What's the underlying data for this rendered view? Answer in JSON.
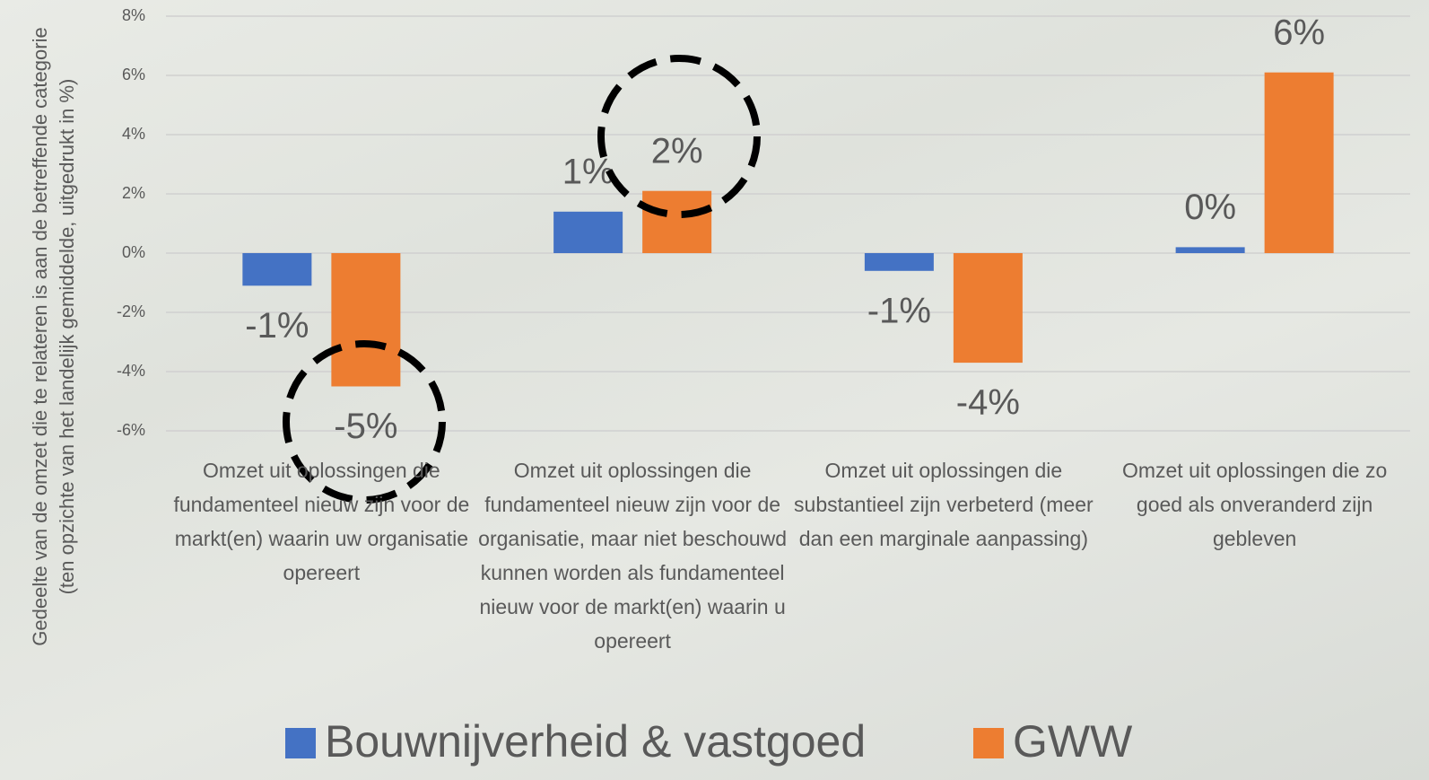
{
  "chart_data": {
    "type": "bar",
    "y_label": "Gedeelte van de omzet die te relateren is aan de betreffende categorie (ten opzichte van het landelijk gemiddelde, uitgedrukt in %)",
    "categories": [
      "Omzet uit oplossingen die fundamenteel nieuw zijn voor de markt(en) waarin uw organisatie opereert",
      "Omzet uit oplossingen die fundamenteel nieuw zijn voor de organisatie, maar niet beschouwd kunnen worden als fundamenteel nieuw voor de markt(en) waarin u opereert",
      "Omzet uit oplossingen die substantieel zijn verbeterd (meer dan een marginale aanpassing)",
      "Omzet uit oplossingen die zo goed als onveranderd zijn gebleven"
    ],
    "series": [
      {
        "name": "Bouwnijverheid & vastgoed",
        "color": "#4472c4",
        "values": [
          -1.1,
          1.4,
          -0.6,
          0.2
        ],
        "value_labels": [
          "-1%",
          "1%",
          "-1%",
          "0%"
        ]
      },
      {
        "name": "GWW",
        "color": "#ed7d31",
        "values": [
          -4.5,
          2.1,
          -3.7,
          6.1
        ],
        "value_labels": [
          "-5%",
          "2%",
          "-4%",
          "6%"
        ]
      }
    ],
    "ylim": [
      -7,
      8
    ],
    "yticks": [
      {
        "value": -6,
        "label": "-6%"
      },
      {
        "value": -4,
        "label": "-4%"
      },
      {
        "value": -2,
        "label": "-2%"
      },
      {
        "value": 0,
        "label": "0%"
      },
      {
        "value": 2,
        "label": "2%"
      },
      {
        "value": 4,
        "label": "4%"
      },
      {
        "value": 6,
        "label": "6%"
      },
      {
        "value": 8,
        "label": "8%"
      }
    ],
    "grid": true,
    "legend": "bottom"
  }
}
